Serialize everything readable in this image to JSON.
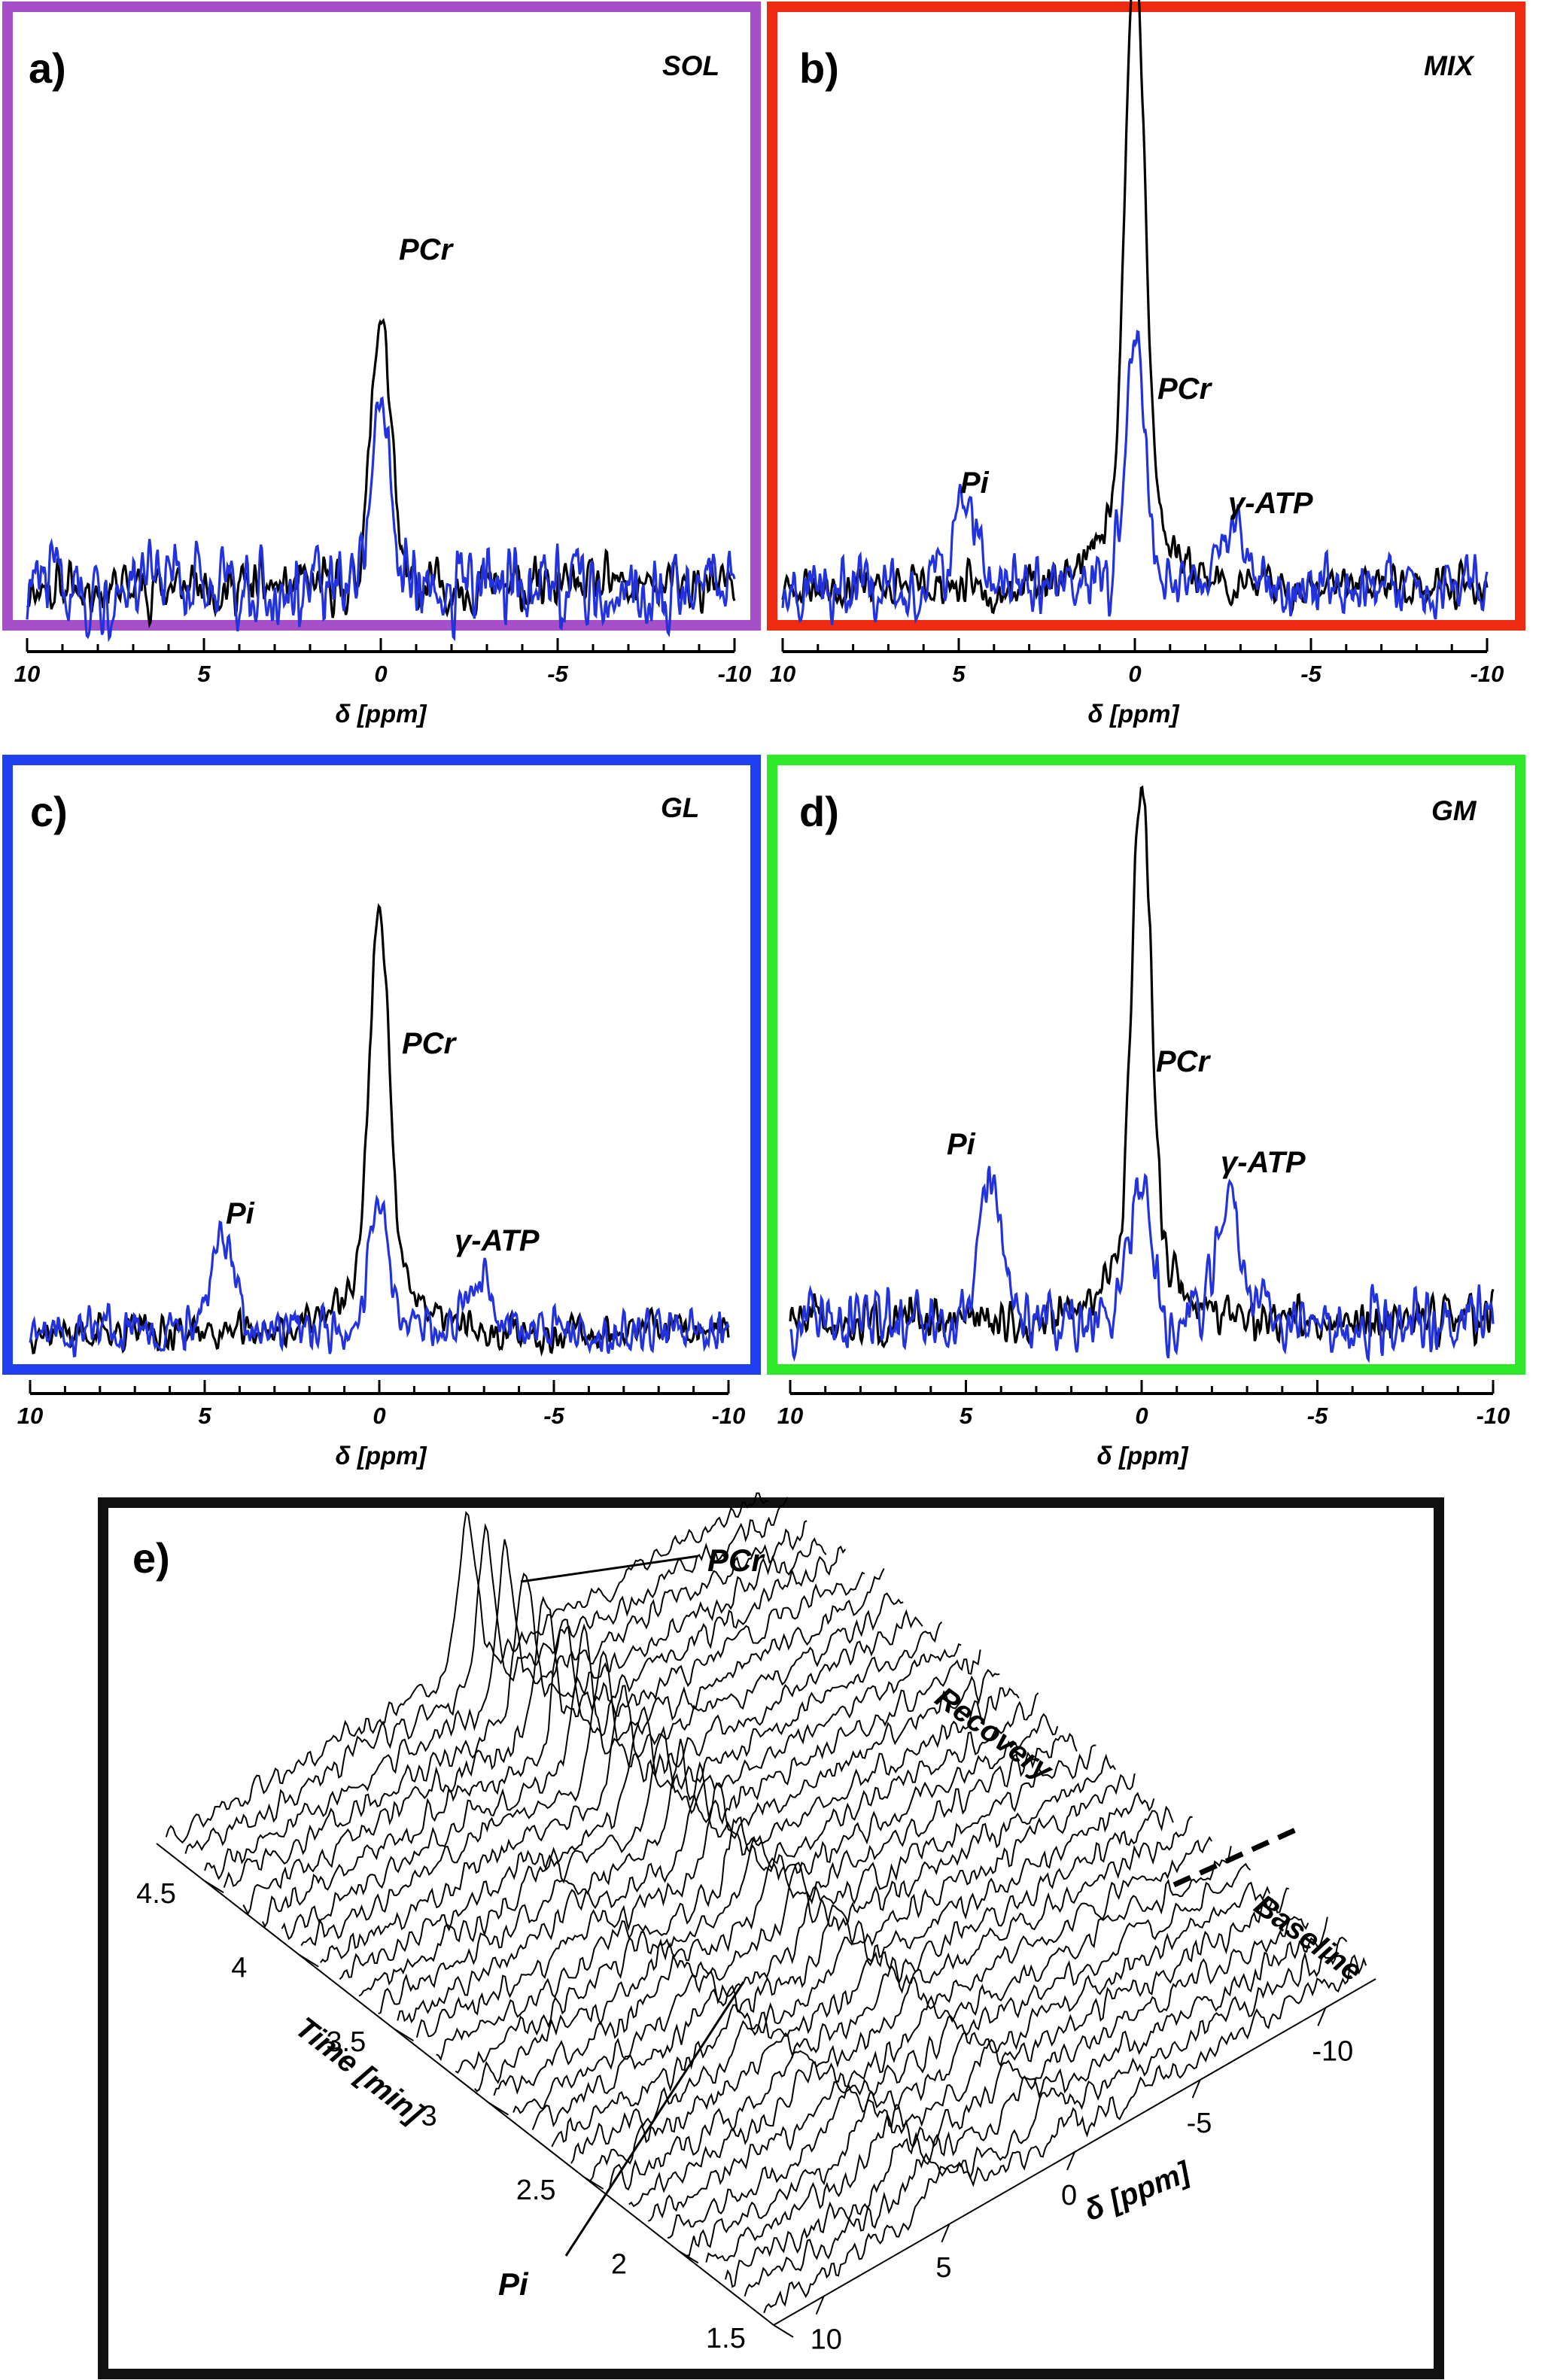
{
  "colors": {
    "panel_a": "#a64fc9",
    "panel_b": "#ee2a10",
    "panel_c": "#1f3ff0",
    "panel_d": "#2ee82a",
    "panel_e": "#111111",
    "series_black": "#000000",
    "series_blue": "#2233dd"
  },
  "chart_data": [
    {
      "type": "line",
      "panel_label": "a)",
      "title": "SOL",
      "xlabel": "δ [ppm]",
      "xlim": [
        10,
        -10
      ],
      "x_ticks": [
        "10",
        "5",
        "0",
        "-5",
        "-10"
      ],
      "annotations": [
        "PCr"
      ],
      "series": [
        {
          "name": "black",
          "peaks": [
            {
              "ppm": 0,
              "height": 0.58
            }
          ]
        },
        {
          "name": "blue",
          "peaks": [
            {
              "ppm": 0,
              "height": 0.38
            }
          ]
        }
      ]
    },
    {
      "type": "line",
      "panel_label": "b)",
      "title": "MIX",
      "xlabel": "δ [ppm]",
      "xlim": [
        10,
        -10
      ],
      "x_ticks": [
        "10",
        "5",
        "0",
        "-5",
        "-10"
      ],
      "annotations": [
        "Pi",
        "PCr",
        "γ-ATP"
      ],
      "series": [
        {
          "name": "black",
          "peaks": [
            {
              "ppm": 0,
              "height": 1.0
            }
          ]
        },
        {
          "name": "blue",
          "peaks": [
            {
              "ppm": 0,
              "height": 0.44
            },
            {
              "ppm": 4.8,
              "height": 0.14
            },
            {
              "ppm": -2.8,
              "height": 0.1
            }
          ]
        }
      ]
    },
    {
      "type": "line",
      "panel_label": "c)",
      "title": "GL",
      "xlabel": "δ [ppm]",
      "xlim": [
        10,
        -10
      ],
      "x_ticks": [
        "10",
        "5",
        "0",
        "-5",
        "-10"
      ],
      "annotations": [
        "PCr",
        "Pi",
        "γ-ATP"
      ],
      "series": [
        {
          "name": "black",
          "peaks": [
            {
              "ppm": 0,
              "height": 0.86
            }
          ]
        },
        {
          "name": "blue",
          "peaks": [
            {
              "ppm": 0,
              "height": 0.3
            },
            {
              "ppm": 4.5,
              "height": 0.2
            },
            {
              "ppm": -2.8,
              "height": 0.12
            }
          ]
        }
      ]
    },
    {
      "type": "line",
      "panel_label": "d)",
      "title": "GM",
      "xlabel": "δ [ppm]",
      "xlim": [
        10,
        -10
      ],
      "x_ticks": [
        "10",
        "5",
        "0",
        "-5",
        "-10"
      ],
      "annotations": [
        "Pi",
        "PCr",
        "γ-ATP"
      ],
      "series": [
        {
          "name": "black",
          "peaks": [
            {
              "ppm": 0,
              "height": 0.98
            }
          ]
        },
        {
          "name": "blue",
          "peaks": [
            {
              "ppm": 0,
              "height": 0.3
            },
            {
              "ppm": 4.3,
              "height": 0.3
            },
            {
              "ppm": -2.5,
              "height": 0.26
            }
          ]
        }
      ]
    },
    {
      "type": "waterfall",
      "panel_label": "e)",
      "xlabel": "δ [ppm]",
      "ylabel": "Time [min]",
      "ppm_ticks": [
        "10",
        "5",
        "0",
        "-5",
        "-10"
      ],
      "time_ticks": [
        "1.5",
        "2",
        "2.5",
        "3",
        "3.5",
        "4",
        "4.5"
      ],
      "annotations": [
        "PCr",
        "Recovery",
        "Baseline",
        "Pi"
      ],
      "n_spectra": 32
    }
  ]
}
